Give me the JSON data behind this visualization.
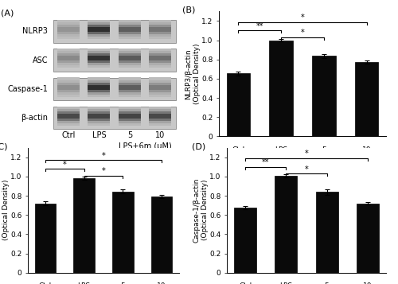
{
  "categories": [
    "Ctrl",
    "LPS",
    "5",
    "10"
  ],
  "xlabel_bottom": "LPS+6m (μM)",
  "bar_color": "#0a0a0a",
  "bar_width": 0.55,
  "ylim": [
    0,
    1.3
  ],
  "yticks": [
    0.0,
    0.2,
    0.4,
    0.6,
    0.8,
    1.0,
    1.2
  ],
  "B_values": [
    0.655,
    1.0,
    0.835,
    0.775
  ],
  "B_errors": [
    0.022,
    0.013,
    0.018,
    0.018
  ],
  "B_ylabel": "NLRP3/β-actin\n(Optical Density)",
  "B_label": "(B)",
  "B_sig": [
    [
      "**",
      0,
      1,
      1.1
    ],
    [
      "*",
      1,
      2,
      1.03
    ],
    [
      "*",
      0,
      3,
      1.19
    ]
  ],
  "C_values": [
    0.72,
    0.985,
    0.845,
    0.79
  ],
  "C_errors": [
    0.022,
    0.015,
    0.018,
    0.018
  ],
  "C_ylabel": "ASC/β-actin\n(Optical Density)",
  "C_label": "(C)",
  "C_sig": [
    [
      "*",
      0,
      1,
      1.08
    ],
    [
      "*",
      1,
      2,
      1.01
    ],
    [
      "*",
      0,
      3,
      1.17
    ]
  ],
  "D_values": [
    0.675,
    1.005,
    0.84,
    0.72
  ],
  "D_errors": [
    0.016,
    0.018,
    0.028,
    0.014
  ],
  "D_ylabel": "Caspase-1/β-actin\n(Optical Density)",
  "D_label": "(D)",
  "D_sig": [
    [
      "**",
      0,
      1,
      1.1
    ],
    [
      "*",
      1,
      2,
      1.03
    ],
    [
      "*",
      0,
      3,
      1.19
    ]
  ],
  "A_label": "(A)",
  "A_proteins": [
    "NLRP3",
    "ASC",
    "Caspase-1",
    "β-actin"
  ],
  "A_xtick_labels": [
    "Ctrl",
    "LPS",
    "5",
    "10"
  ],
  "A_xlabel_bottom": "LPS+6m (μM)",
  "figsize": [
    5.0,
    3.57
  ],
  "dpi": 100,
  "background": "#ffffff",
  "fontsize_ylabel": 6.5,
  "fontsize_tick": 6.5,
  "fontsize_panel": 8,
  "fontsize_sig": 7,
  "fontsize_A_label": 7
}
